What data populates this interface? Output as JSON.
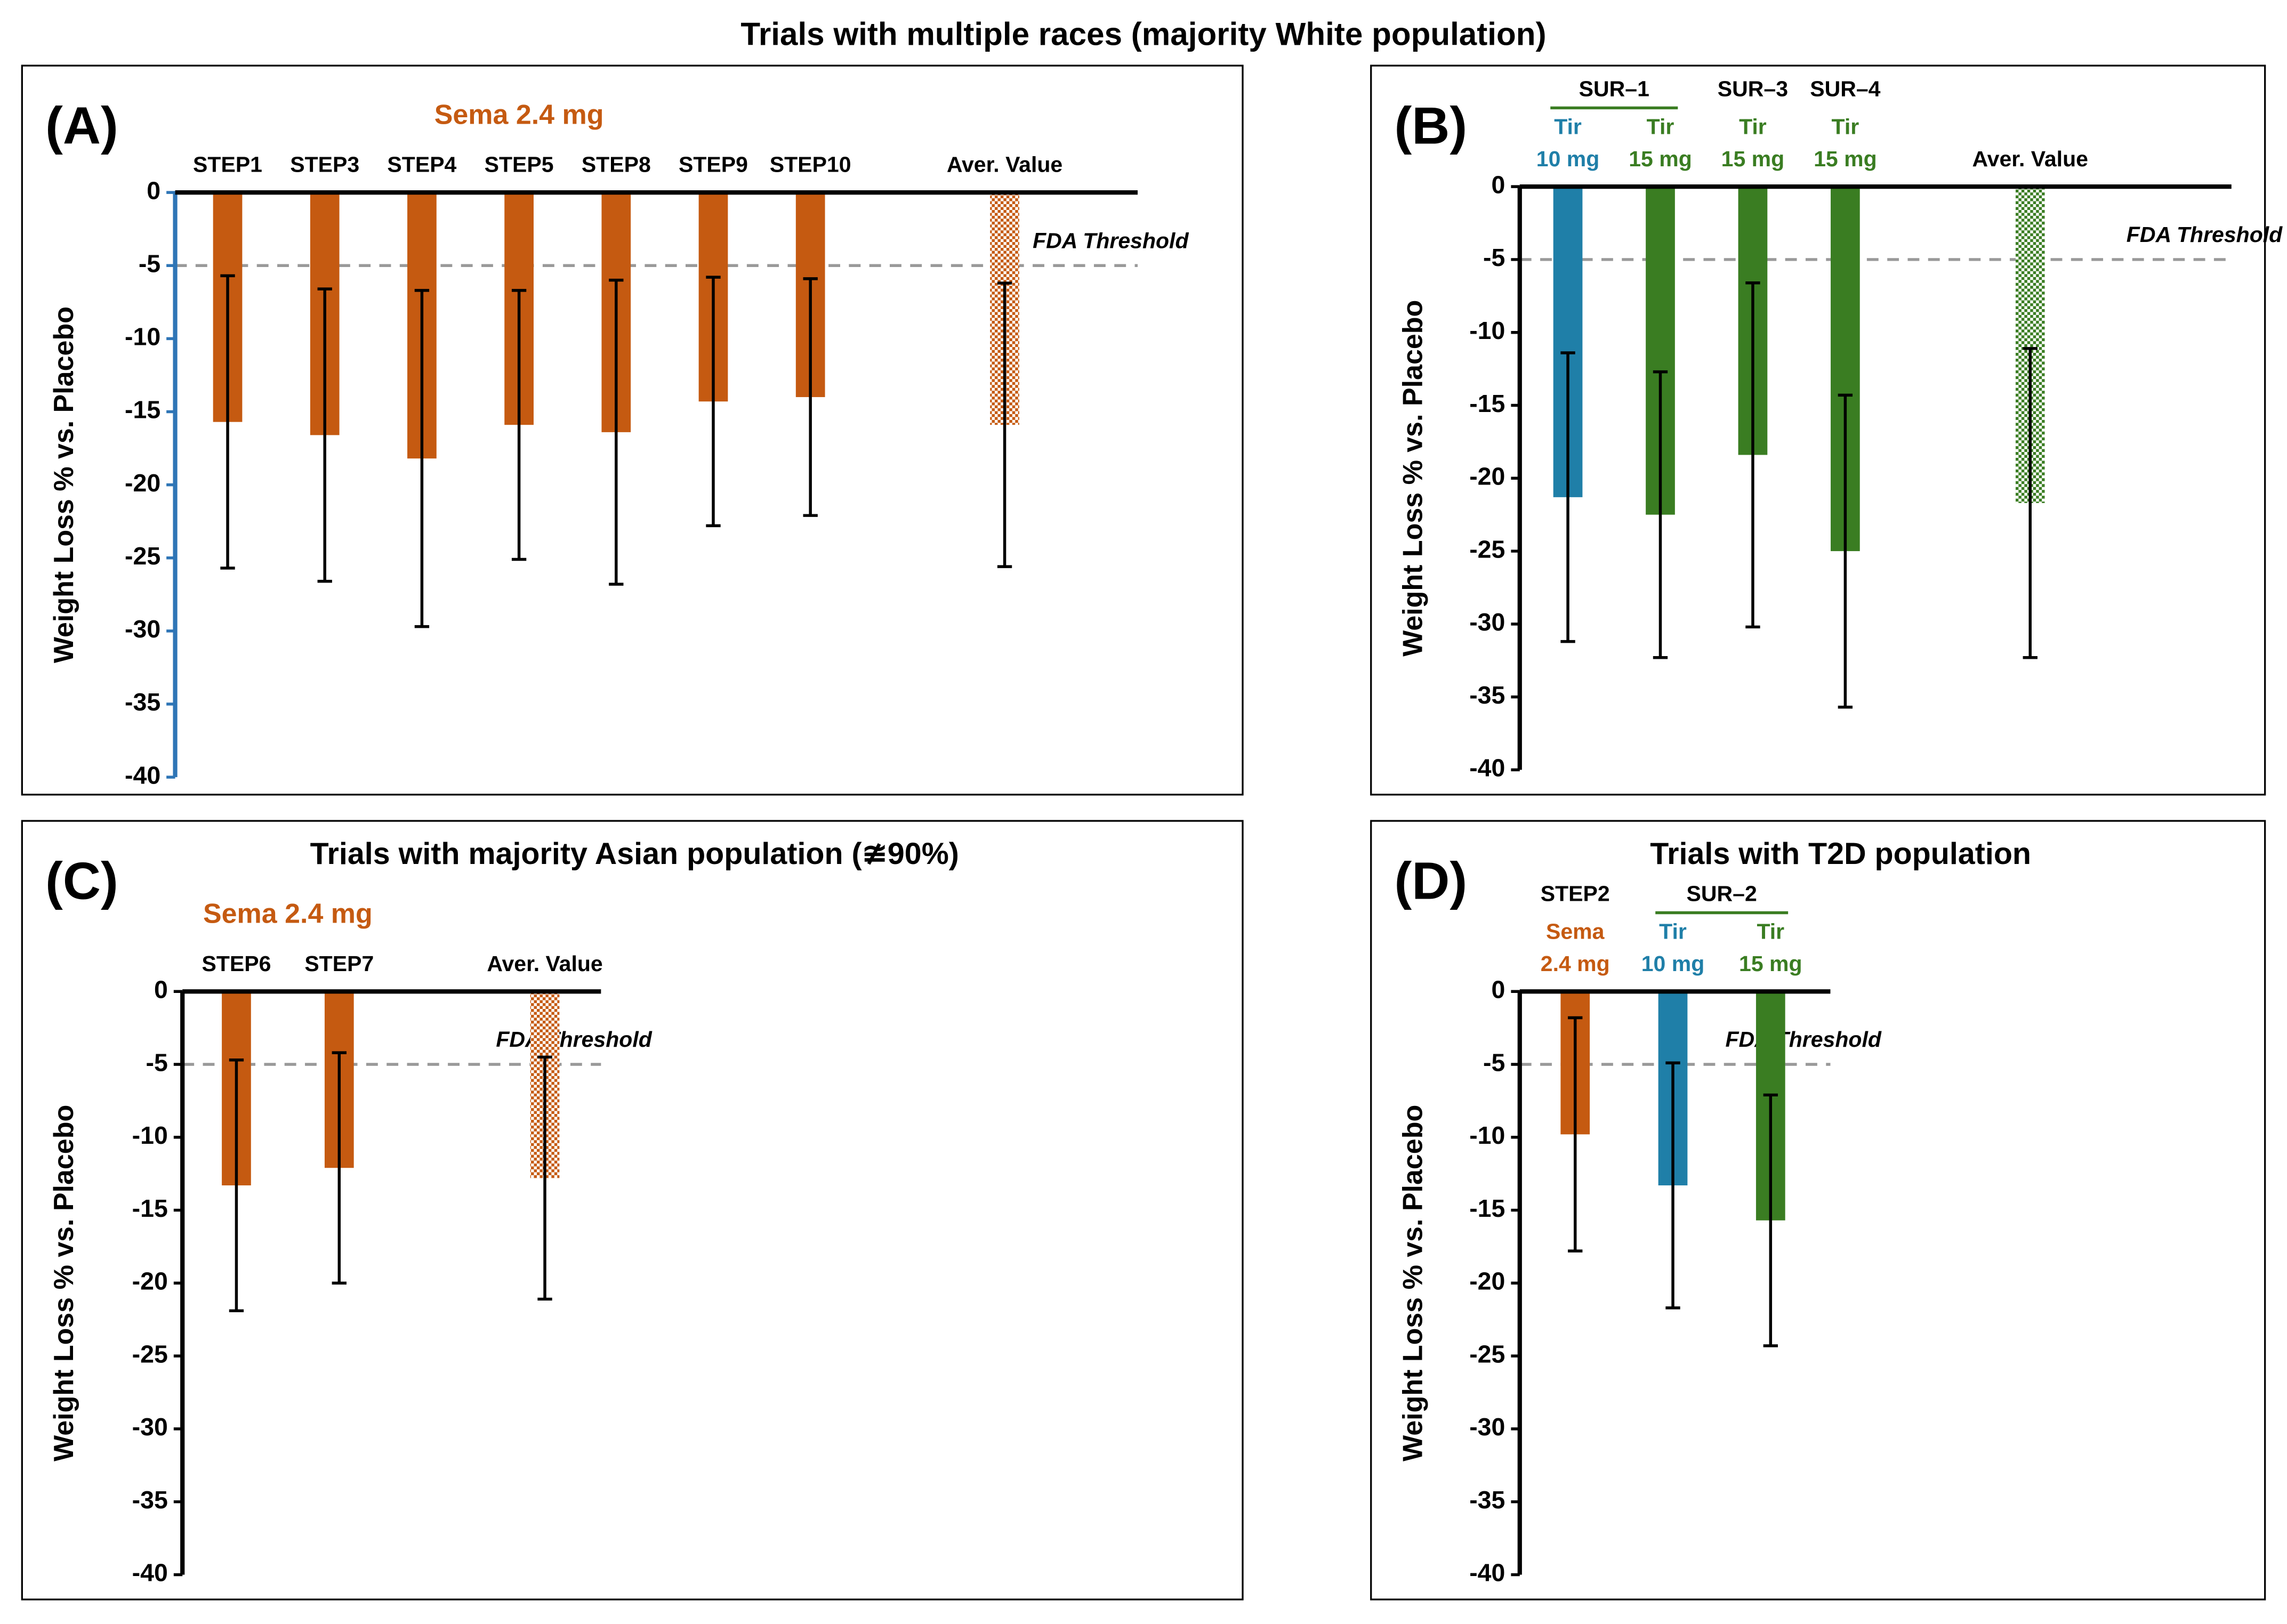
{
  "title": "Trials with multiple races (majority White population)",
  "chart_data": [
    {
      "type": "bar",
      "panel": "(A)",
      "ylabel": "Weight Loss % vs. Placebo",
      "axis_color": "#2e75b6",
      "groups": [
        {
          "label": "Sema 2.4 mg",
          "span": [
            0,
            6
          ],
          "color": "#c55a11",
          "underline": false
        }
      ],
      "categories": [
        [
          "STEP1"
        ],
        [
          "STEP3"
        ],
        [
          "STEP4"
        ],
        [
          "STEP5"
        ],
        [
          "STEP8"
        ],
        [
          "STEP9"
        ],
        [
          "STEP10"
        ],
        null,
        [
          "Aver. Value"
        ]
      ],
      "values": [
        -15.7,
        -16.6,
        -18.2,
        -15.9,
        -16.4,
        -14.3,
        -14.0,
        null,
        -15.9
      ],
      "errors": [
        10.0,
        10.0,
        11.5,
        9.2,
        10.4,
        8.5,
        8.1,
        null,
        9.7
      ],
      "colors": [
        "#c55a11",
        "#c55a11",
        "#c55a11",
        "#c55a11",
        "#c55a11",
        "#c55a11",
        "#c55a11",
        null,
        "#c55a11"
      ],
      "label_colors": [
        "#000000",
        "#000000",
        "#000000",
        "#000000",
        "#000000",
        "#000000",
        "#000000",
        null,
        "#000000"
      ],
      "patterned": [
        false,
        false,
        false,
        false,
        false,
        false,
        false,
        null,
        true
      ],
      "threshold": -5,
      "threshold_label": "FDA Threshold",
      "ylim": [
        -40,
        0
      ],
      "yticks": [
        0,
        -5,
        -10,
        -15,
        -20,
        -25,
        -30,
        -35,
        -40
      ]
    },
    {
      "type": "bar",
      "panel": "(B)",
      "ylabel": "Weight Loss % vs. Placebo",
      "axis_color": "#000000",
      "groups": [
        {
          "label": "SUR–1",
          "span": [
            0,
            1
          ],
          "color": "#000000",
          "underline": true
        },
        {
          "label": "SUR–3",
          "span": [
            2,
            2
          ],
          "color": "#000000",
          "underline": false
        },
        {
          "label": "SUR–4",
          "span": [
            3,
            3
          ],
          "color": "#000000",
          "underline": false
        }
      ],
      "categories": [
        [
          "Tir",
          "10 mg"
        ],
        [
          "Tir",
          "15 mg"
        ],
        [
          "Tir",
          "15 mg"
        ],
        [
          "Tir",
          "15 mg"
        ],
        null,
        [
          "Aver. Value"
        ]
      ],
      "values": [
        -21.3,
        -22.5,
        -18.4,
        -25.0,
        null,
        -21.7
      ],
      "errors": [
        9.9,
        9.8,
        11.8,
        10.7,
        null,
        10.6
      ],
      "colors": [
        "#1f7fa8",
        "#3a7d22",
        "#3a7d22",
        "#3a7d22",
        null,
        "#3a7d22"
      ],
      "label_colors": [
        "#1f7fa8",
        "#3a7d22",
        "#3a7d22",
        "#3a7d22",
        null,
        "#000000"
      ],
      "patterned": [
        false,
        false,
        false,
        false,
        null,
        true
      ],
      "threshold": -5,
      "threshold_label": "FDA Threshold",
      "ylim": [
        -40,
        0
      ],
      "yticks": [
        0,
        -5,
        -10,
        -15,
        -20,
        -25,
        -30,
        -35,
        -40
      ]
    },
    {
      "type": "bar",
      "panel": "(C)",
      "title": "Trials with majority Asian population (≇90%)",
      "ylabel": "Weight Loss % vs. Placebo",
      "axis_color": "#000000",
      "groups": [
        {
          "label": "Sema 2.4 mg",
          "span": [
            0,
            1
          ],
          "color": "#c55a11",
          "underline": false
        }
      ],
      "categories": [
        [
          "STEP6"
        ],
        [
          "STEP7"
        ],
        null,
        [
          "Aver. Value"
        ]
      ],
      "values": [
        -13.3,
        -12.1,
        null,
        -12.8
      ],
      "errors": [
        8.6,
        7.9,
        null,
        8.3
      ],
      "colors": [
        "#c55a11",
        "#c55a11",
        null,
        "#c55a11"
      ],
      "label_colors": [
        "#000000",
        "#000000",
        null,
        "#000000"
      ],
      "patterned": [
        false,
        false,
        null,
        true
      ],
      "threshold": -5,
      "threshold_label": "FDA Threshold",
      "ylim": [
        -40,
        0
      ],
      "yticks": [
        0,
        -5,
        -10,
        -15,
        -20,
        -25,
        -30,
        -35,
        -40
      ]
    },
    {
      "type": "bar",
      "panel": "(D)",
      "title": "Trials with T2D population",
      "ylabel": "Weight Loss % vs. Placebo",
      "axis_color": "#000000",
      "groups": [
        {
          "label": "STEP2",
          "span": [
            0,
            0
          ],
          "color": "#000000",
          "underline": false
        },
        {
          "label": "SUR–2",
          "span": [
            1,
            2
          ],
          "color": "#000000",
          "underline": true
        }
      ],
      "categories": [
        [
          "Sema",
          "2.4 mg"
        ],
        [
          "Tir",
          "10 mg"
        ],
        [
          "Tir",
          "15 mg"
        ]
      ],
      "values": [
        -9.8,
        -13.3,
        -15.7
      ],
      "errors": [
        8.0,
        8.4,
        8.6
      ],
      "colors": [
        "#c55a11",
        "#1f7fa8",
        "#3a7d22"
      ],
      "label_colors": [
        "#c55a11",
        "#1f7fa8",
        "#3a7d22"
      ],
      "patterned": [
        false,
        false,
        false
      ],
      "threshold": -5,
      "threshold_label": "FDA Threshold",
      "ylim": [
        -40,
        0
      ],
      "yticks": [
        0,
        -5,
        -10,
        -15,
        -20,
        -25,
        -30,
        -35,
        -40
      ]
    }
  ]
}
